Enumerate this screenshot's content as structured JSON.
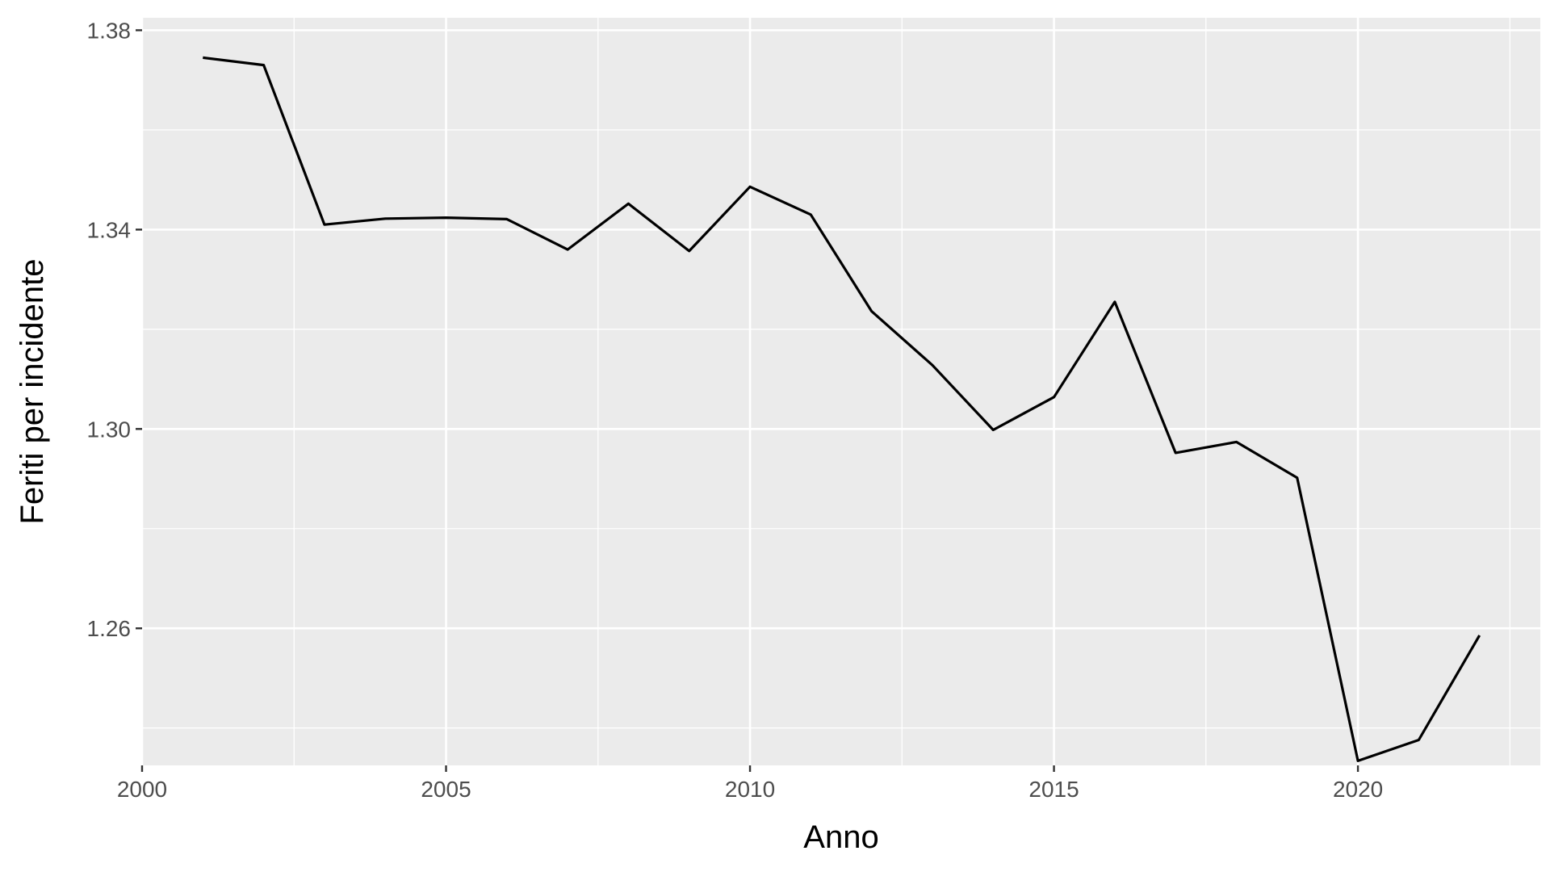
{
  "chart_data": {
    "type": "line",
    "title": "",
    "xlabel": "Anno",
    "ylabel": "Feriti per incidente",
    "xlim": [
      2000,
      2023
    ],
    "ylim": [
      1.2325,
      1.3825
    ],
    "x_ticks": [
      2000,
      2005,
      2010,
      2015,
      2020
    ],
    "x_tick_labels": [
      "2000",
      "2005",
      "2010",
      "2015",
      "2020"
    ],
    "y_ticks": [
      1.26,
      1.3,
      1.34,
      1.38
    ],
    "y_tick_labels": [
      "1.26",
      "1.30",
      "1.34",
      "1.38"
    ],
    "grid": true,
    "legend": "none",
    "series": [
      {
        "color": "#000000",
        "x": [
          2001,
          2002,
          2003,
          2004,
          2005,
          2006,
          2007,
          2008,
          2009,
          2010,
          2011,
          2012,
          2013,
          2014,
          2015,
          2016,
          2017,
          2018,
          2019,
          2020,
          2021,
          2022
        ],
        "values": [
          1.3745,
          1.373,
          1.341,
          1.3422,
          1.3424,
          1.3421,
          1.336,
          1.3452,
          1.3357,
          1.3486,
          1.343,
          1.3236,
          1.3128,
          1.2998,
          1.3064,
          1.3255,
          1.2952,
          1.2974,
          1.2902,
          1.2334,
          1.2376,
          1.2586
        ]
      }
    ]
  },
  "style": {
    "panel_background": "#ebebeb",
    "grid_major_color": "#ffffff",
    "grid_minor_color": "#ffffff",
    "tick_color": "#333333",
    "tick_label_color": "#4d4d4d"
  }
}
